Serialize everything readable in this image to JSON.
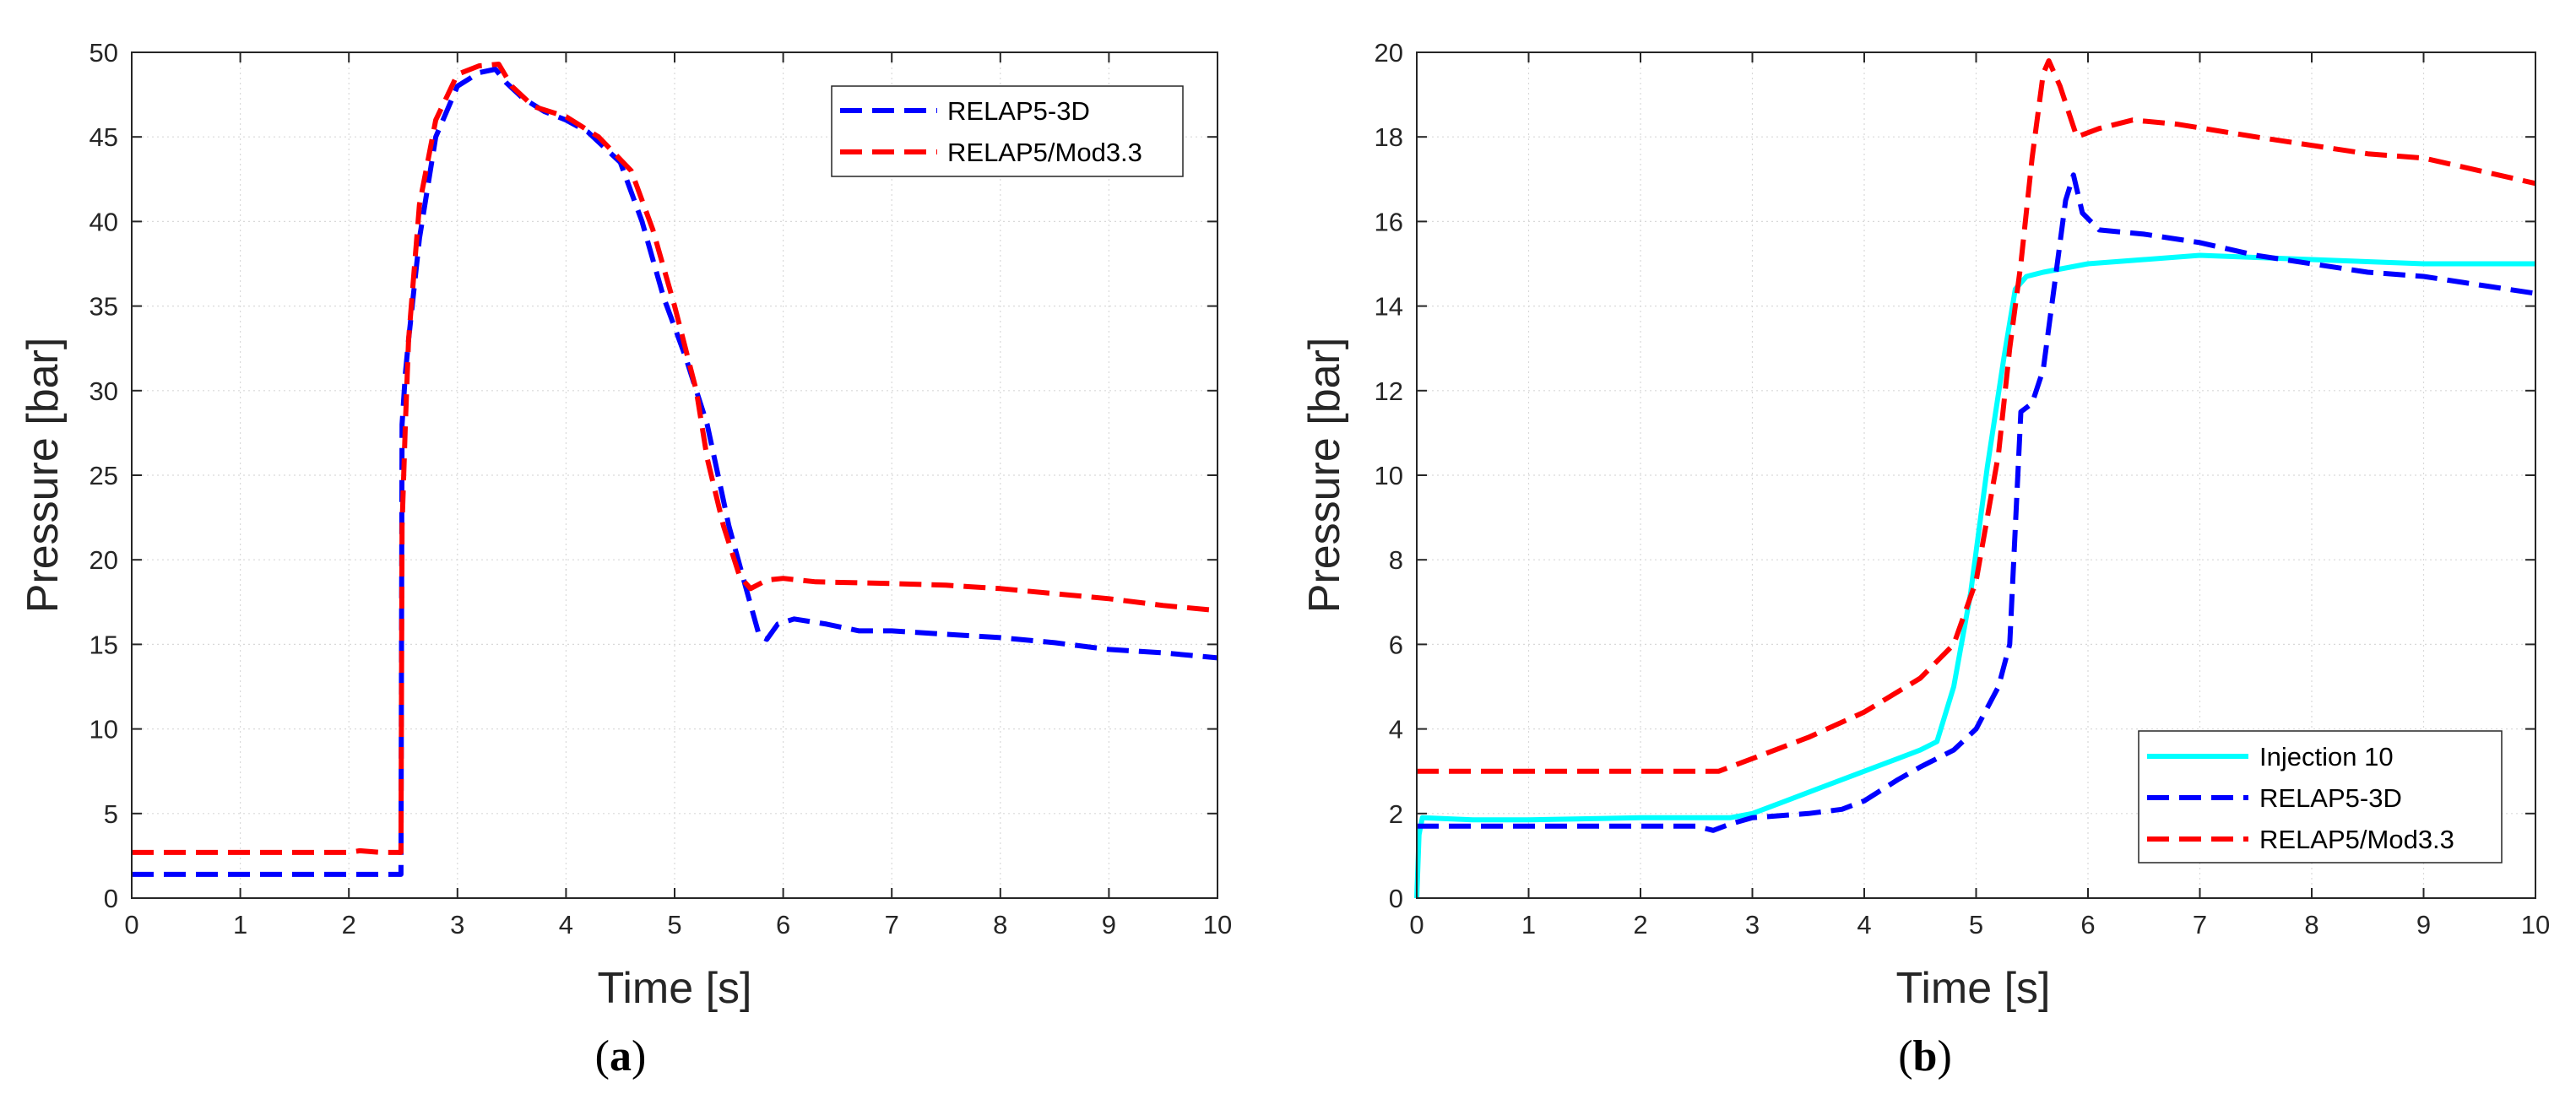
{
  "chart_data": [
    {
      "type": "line",
      "panel_label": "(a)",
      "panel_prefix": "(",
      "panel_letter": "a",
      "panel_suffix": ")",
      "xlabel": "Time [s]",
      "ylabel": "Pressure [bar]",
      "xlim": [
        0,
        10
      ],
      "ylim": [
        0,
        50
      ],
      "xticks": [
        0,
        1,
        2,
        3,
        4,
        5,
        6,
        7,
        8,
        9,
        10
      ],
      "yticks": [
        0,
        5,
        10,
        15,
        20,
        25,
        30,
        35,
        40,
        45,
        50
      ],
      "grid": true,
      "legend_position": "top-right",
      "series": [
        {
          "name": "RELAP5-3D",
          "color": "#0000ff",
          "style": "dashed",
          "x": [
            0,
            2.48,
            2.49,
            2.52,
            2.55,
            2.65,
            2.8,
            3.0,
            3.2,
            3.35,
            3.45,
            3.6,
            3.8,
            4.0,
            4.2,
            4.5,
            4.7,
            4.9,
            5.1,
            5.3,
            5.5,
            5.65,
            5.78,
            5.85,
            5.95,
            6.1,
            6.4,
            6.7,
            7.0,
            7.5,
            8.0,
            8.5,
            9.0,
            9.5,
            10.0
          ],
          "y": [
            1.4,
            1.4,
            28,
            31,
            33,
            39,
            45,
            48,
            48.8,
            49,
            48.2,
            47.3,
            46.5,
            46,
            45.3,
            43.5,
            40,
            35.5,
            32,
            28,
            22,
            18.5,
            15.5,
            15.3,
            16.2,
            16.5,
            16.2,
            15.8,
            15.8,
            15.6,
            15.4,
            15.1,
            14.7,
            14.5,
            14.2
          ]
        },
        {
          "name": "RELAP5/Mod3.3",
          "color": "#ff0000",
          "style": "dashed",
          "x": [
            0,
            2.0,
            2.1,
            2.3,
            2.48,
            2.49,
            2.52,
            2.55,
            2.65,
            2.8,
            3.0,
            3.2,
            3.38,
            3.5,
            3.7,
            4.0,
            4.3,
            4.6,
            4.8,
            5.0,
            5.2,
            5.3,
            5.45,
            5.6,
            5.7,
            5.85,
            6.0,
            6.3,
            7.0,
            7.5,
            8.0,
            8.5,
            9.0,
            9.5,
            10.0
          ],
          "y": [
            2.7,
            2.7,
            2.8,
            2.7,
            2.7,
            22,
            28,
            33,
            41,
            46,
            48.7,
            49.2,
            49.3,
            48,
            46.8,
            46.2,
            45,
            43,
            39.5,
            35,
            30,
            26,
            22,
            19,
            18.3,
            18.8,
            18.9,
            18.7,
            18.6,
            18.5,
            18.3,
            18.0,
            17.7,
            17.3,
            17.0
          ]
        }
      ]
    },
    {
      "type": "line",
      "panel_label": "(b)",
      "panel_prefix": "(",
      "panel_letter": "b",
      "panel_suffix": ")",
      "xlabel": "Time [s]",
      "ylabel": "Pressure [bar]",
      "xlim": [
        0,
        10
      ],
      "ylim": [
        0,
        20
      ],
      "xticks": [
        0,
        1,
        2,
        3,
        4,
        5,
        6,
        7,
        8,
        9,
        10
      ],
      "yticks": [
        0,
        2,
        4,
        6,
        8,
        10,
        12,
        14,
        16,
        18,
        20
      ],
      "grid": true,
      "legend_position": "bottom-right",
      "series": [
        {
          "name": "Injection 10",
          "color": "#00ffff",
          "style": "solid",
          "x": [
            0,
            0.02,
            0.05,
            0.5,
            1.0,
            2.0,
            2.5,
            2.8,
            3.0,
            3.3,
            3.6,
            3.8,
            4.0,
            4.3,
            4.5,
            4.65,
            4.8,
            4.95,
            5.1,
            5.25,
            5.35,
            5.45,
            5.6,
            5.8,
            6.0,
            6.5,
            7.0,
            7.5,
            8.0,
            8.5,
            9.0,
            9.5,
            10.0
          ],
          "y": [
            0,
            1.5,
            1.9,
            1.85,
            1.85,
            1.9,
            1.9,
            1.9,
            2.0,
            2.3,
            2.6,
            2.8,
            3.0,
            3.3,
            3.5,
            3.7,
            5.0,
            7.2,
            10.2,
            12.8,
            14.4,
            14.7,
            14.8,
            14.9,
            15.0,
            15.1,
            15.2,
            15.15,
            15.1,
            15.05,
            15.0,
            15.0,
            15.0
          ]
        },
        {
          "name": "RELAP5-3D",
          "color": "#0000ff",
          "style": "dashed",
          "x": [
            0,
            1.0,
            2.0,
            2.5,
            2.65,
            2.8,
            3.0,
            3.5,
            3.8,
            4.0,
            4.3,
            4.5,
            4.8,
            5.0,
            5.2,
            5.3,
            5.4,
            5.5,
            5.6,
            5.7,
            5.8,
            5.87,
            5.95,
            6.1,
            6.5,
            7.0,
            7.5,
            8.0,
            8.5,
            9.0,
            9.5,
            10.0
          ],
          "y": [
            1.7,
            1.7,
            1.7,
            1.7,
            1.6,
            1.75,
            1.9,
            2.0,
            2.1,
            2.3,
            2.8,
            3.1,
            3.5,
            4.0,
            5.0,
            6.0,
            11.5,
            11.7,
            12.5,
            14.5,
            16.5,
            17.1,
            16.2,
            15.8,
            15.7,
            15.5,
            15.2,
            15.0,
            14.8,
            14.7,
            14.5,
            14.3
          ]
        },
        {
          "name": "RELAP5/Mod3.3",
          "color": "#ff0000",
          "style": "dashed",
          "x": [
            0,
            1.0,
            2.0,
            2.7,
            3.0,
            3.5,
            4.0,
            4.5,
            4.8,
            5.0,
            5.2,
            5.3,
            5.4,
            5.5,
            5.6,
            5.65,
            5.75,
            5.9,
            6.1,
            6.4,
            6.8,
            7.5,
            8.0,
            8.5,
            9.0,
            9.5,
            10.0
          ],
          "y": [
            3.0,
            3.0,
            3.0,
            3.0,
            3.3,
            3.8,
            4.4,
            5.2,
            6.0,
            7.5,
            10.5,
            13.0,
            15.0,
            17.5,
            19.5,
            19.8,
            19.2,
            18.0,
            18.2,
            18.4,
            18.3,
            18.0,
            17.8,
            17.6,
            17.5,
            17.2,
            16.9
          ]
        }
      ]
    }
  ]
}
